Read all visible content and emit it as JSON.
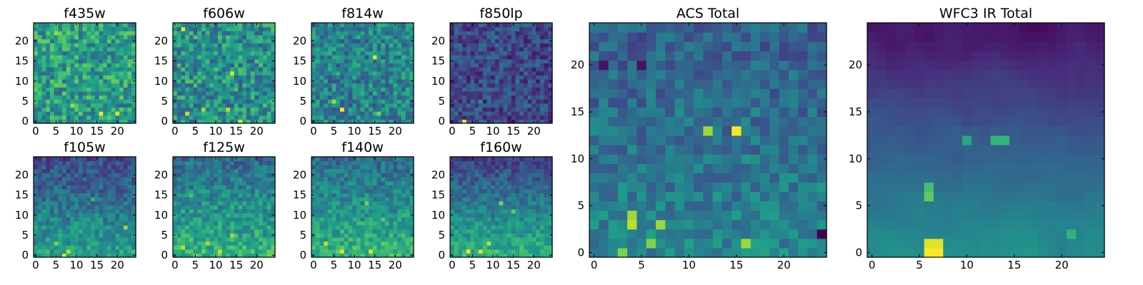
{
  "figure": {
    "colormap": "viridis",
    "colormap_stops": [
      "#440154",
      "#482878",
      "#3e4989",
      "#31688e",
      "#26828e",
      "#1f9e89",
      "#35b779",
      "#6ece58",
      "#b5de2b",
      "#fde725"
    ],
    "frame_color": "#000000",
    "background": "#ffffff"
  },
  "chart_data": [
    {
      "type": "heatmap",
      "title": "f435w",
      "grid_size": 25,
      "xlim": [
        0,
        24
      ],
      "ylim": [
        0,
        24
      ],
      "xticks": [
        0,
        5,
        10,
        15,
        20
      ],
      "yticks": [
        0,
        5,
        10,
        15,
        20
      ],
      "xtick_labels": [
        "0",
        "5",
        "10",
        "15",
        "20"
      ],
      "ytick_labels": [
        "0",
        "5",
        "10",
        "15",
        "20"
      ],
      "base_level": 0.55,
      "noise": 0.22,
      "seed": 11,
      "hotspots": [
        {
          "x": 16,
          "y": 2,
          "level": 1.0
        },
        {
          "x": 20,
          "y": 2,
          "level": 0.95
        },
        {
          "x": 9,
          "y": 4,
          "level": 0.85
        },
        {
          "x": 5,
          "y": 22,
          "level": 0.85
        }
      ]
    },
    {
      "type": "heatmap",
      "title": "f606w",
      "grid_size": 25,
      "xlim": [
        0,
        24
      ],
      "ylim": [
        0,
        24
      ],
      "xticks": [
        0,
        5,
        10,
        15,
        20
      ],
      "yticks": [
        0,
        5,
        10,
        15,
        20
      ],
      "xtick_labels": [
        "0",
        "5",
        "10",
        "15",
        "20"
      ],
      "ytick_labels": [
        "0",
        "5",
        "10",
        "15",
        "20"
      ],
      "base_level": 0.5,
      "noise": 0.22,
      "seed": 22,
      "hotspots": [
        {
          "x": 3,
          "y": 2,
          "level": 0.9
        },
        {
          "x": 7,
          "y": 3,
          "level": 0.85
        },
        {
          "x": 13,
          "y": 3,
          "level": 0.9
        },
        {
          "x": 14,
          "y": 12,
          "level": 0.95
        },
        {
          "x": 2,
          "y": 23,
          "level": 0.95
        },
        {
          "x": 16,
          "y": 0,
          "level": 0.95
        }
      ]
    },
    {
      "type": "heatmap",
      "title": "f814w",
      "grid_size": 25,
      "xlim": [
        0,
        24
      ],
      "ylim": [
        0,
        24
      ],
      "xticks": [
        0,
        5,
        10,
        15,
        20
      ],
      "yticks": [
        0,
        5,
        10,
        15,
        20
      ],
      "xtick_labels": [
        "0",
        "5",
        "10",
        "15",
        "20"
      ],
      "ytick_labels": [
        "0",
        "5",
        "10",
        "15",
        "20"
      ],
      "base_level": 0.45,
      "noise": 0.2,
      "seed": 33,
      "hotspots": [
        {
          "x": 7,
          "y": 3,
          "level": 1.0
        },
        {
          "x": 5,
          "y": 5,
          "level": 0.85
        },
        {
          "x": 15,
          "y": 16,
          "level": 0.95
        },
        {
          "x": 16,
          "y": 2,
          "level": 0.8
        }
      ]
    },
    {
      "type": "heatmap",
      "title": "f850lp",
      "grid_size": 25,
      "xlim": [
        0,
        24
      ],
      "ylim": [
        0,
        24
      ],
      "xticks": [
        0,
        5,
        10,
        15,
        20
      ],
      "yticks": [
        0,
        5,
        10,
        15,
        20
      ],
      "xtick_labels": [
        "0",
        "5",
        "10",
        "15",
        "20"
      ],
      "ytick_labels": [
        "0",
        "5",
        "10",
        "15",
        "20"
      ],
      "base_level": 0.22,
      "noise": 0.16,
      "seed": 44,
      "hotspots": [
        {
          "x": 3,
          "y": 0,
          "level": 0.95
        },
        {
          "x": 7,
          "y": 5,
          "level": 0.5
        },
        {
          "x": 16,
          "y": 10,
          "level": 0.45
        }
      ]
    },
    {
      "type": "heatmap",
      "title": "f105w",
      "grid_size": 25,
      "xlim": [
        0,
        24
      ],
      "ylim": [
        0,
        24
      ],
      "xticks": [
        0,
        5,
        10,
        15,
        20
      ],
      "yticks": [
        0,
        5,
        10,
        15,
        20
      ],
      "xtick_labels": [
        "0",
        "5",
        "10",
        "15",
        "20"
      ],
      "ytick_labels": [
        "0",
        "5",
        "10",
        "15",
        "20"
      ],
      "base_level": 0.4,
      "noise": 0.14,
      "seed": 55,
      "gradient": 0.35,
      "hotspots": [
        {
          "x": 7,
          "y": 0,
          "level": 0.95
        },
        {
          "x": 8,
          "y": 1,
          "level": 0.9
        },
        {
          "x": 22,
          "y": 7,
          "level": 0.85
        },
        {
          "x": 5,
          "y": 3,
          "level": 0.8
        },
        {
          "x": 14,
          "y": 14,
          "level": 0.65
        }
      ]
    },
    {
      "type": "heatmap",
      "title": "f125w",
      "grid_size": 25,
      "xlim": [
        0,
        24
      ],
      "ylim": [
        0,
        24
      ],
      "xticks": [
        0,
        5,
        10,
        15,
        20
      ],
      "yticks": [
        0,
        5,
        10,
        15,
        20
      ],
      "xtick_labels": [
        "0",
        "5",
        "10",
        "15",
        "20"
      ],
      "ytick_labels": [
        "0",
        "5",
        "10",
        "15",
        "20"
      ],
      "base_level": 0.5,
      "noise": 0.15,
      "seed": 66,
      "gradient": 0.3,
      "hotspots": [
        {
          "x": 2,
          "y": 2,
          "level": 0.9
        },
        {
          "x": 11,
          "y": 1,
          "level": 0.9
        },
        {
          "x": 14,
          "y": 5,
          "level": 0.85
        },
        {
          "x": 8,
          "y": 3,
          "level": 0.85
        },
        {
          "x": 4,
          "y": 15,
          "level": 0.7
        }
      ]
    },
    {
      "type": "heatmap",
      "title": "f140w",
      "grid_size": 25,
      "xlim": [
        0,
        24
      ],
      "ylim": [
        0,
        24
      ],
      "xticks": [
        0,
        5,
        10,
        15,
        20
      ],
      "yticks": [
        0,
        5,
        10,
        15,
        20
      ],
      "xtick_labels": [
        "0",
        "5",
        "10",
        "15",
        "20"
      ],
      "ytick_labels": [
        "0",
        "5",
        "10",
        "15",
        "20"
      ],
      "base_level": 0.5,
      "noise": 0.14,
      "seed": 77,
      "gradient": 0.3,
      "hotspots": [
        {
          "x": 3,
          "y": 3,
          "level": 0.9
        },
        {
          "x": 7,
          "y": 1,
          "level": 0.95
        },
        {
          "x": 14,
          "y": 1,
          "level": 0.95
        },
        {
          "x": 13,
          "y": 13,
          "level": 0.8
        },
        {
          "x": 17,
          "y": 9,
          "level": 0.75
        }
      ]
    },
    {
      "type": "heatmap",
      "title": "f160w",
      "grid_size": 25,
      "xlim": [
        0,
        24
      ],
      "ylim": [
        0,
        24
      ],
      "xticks": [
        0,
        5,
        10,
        15,
        20
      ],
      "yticks": [
        0,
        5,
        10,
        15,
        20
      ],
      "xtick_labels": [
        "0",
        "5",
        "10",
        "15",
        "20"
      ],
      "ytick_labels": [
        "0",
        "5",
        "10",
        "15",
        "20"
      ],
      "base_level": 0.42,
      "noise": 0.12,
      "seed": 88,
      "gradient": 0.45,
      "hotspots": [
        {
          "x": 4,
          "y": 1,
          "level": 1.0
        },
        {
          "x": 7,
          "y": 1,
          "level": 0.95
        },
        {
          "x": 9,
          "y": 3,
          "level": 0.9
        },
        {
          "x": 12,
          "y": 13,
          "level": 0.8
        },
        {
          "x": 15,
          "y": 11,
          "level": 0.75
        }
      ]
    },
    {
      "type": "heatmap",
      "title": "ACS Total",
      "grid_size": 25,
      "xlim": [
        0,
        24
      ],
      "ylim": [
        0,
        24
      ],
      "xticks": [
        0,
        5,
        10,
        15,
        20
      ],
      "yticks": [
        0,
        5,
        10,
        15,
        20
      ],
      "xtick_labels": [
        "0",
        "5",
        "10",
        "15",
        "20"
      ],
      "ytick_labels": [
        "0",
        "5",
        "10",
        "15",
        "20"
      ],
      "base_level": 0.38,
      "noise": 0.13,
      "seed": 99,
      "gradient": 0.15,
      "hotspots": [
        {
          "x": 15,
          "y": 13,
          "level": 1.0
        },
        {
          "x": 12,
          "y": 13,
          "level": 0.85
        },
        {
          "x": 4,
          "y": 3,
          "level": 0.9
        },
        {
          "x": 4,
          "y": 4,
          "level": 0.85
        },
        {
          "x": 7,
          "y": 3,
          "level": 0.85
        },
        {
          "x": 16,
          "y": 1,
          "level": 0.85
        },
        {
          "x": 3,
          "y": 0,
          "level": 0.8
        },
        {
          "x": 6,
          "y": 1,
          "level": 0.8
        },
        {
          "x": 24,
          "y": 2,
          "level": 0.0
        },
        {
          "x": 1,
          "y": 20,
          "level": 0.05
        },
        {
          "x": 5,
          "y": 20,
          "level": 0.05
        }
      ]
    },
    {
      "type": "heatmap",
      "title": "WFC3 IR Total",
      "grid_size": 25,
      "xlim": [
        0,
        24
      ],
      "ylim": [
        0,
        24
      ],
      "xticks": [
        0,
        5,
        10,
        15,
        20
      ],
      "yticks": [
        0,
        5,
        10,
        15,
        20
      ],
      "xtick_labels": [
        "0",
        "5",
        "10",
        "15",
        "20"
      ],
      "ytick_labels": [
        "0",
        "5",
        "10",
        "15",
        "20"
      ],
      "base_level": 0.28,
      "noise": 0.07,
      "seed": 111,
      "gradient": 0.45,
      "smooth": true,
      "hotspots": [
        {
          "x": 6,
          "y": 0,
          "level": 1.0
        },
        {
          "x": 7,
          "y": 0,
          "level": 1.0
        },
        {
          "x": 6,
          "y": 1,
          "level": 0.95
        },
        {
          "x": 7,
          "y": 1,
          "level": 0.95
        },
        {
          "x": 14,
          "y": 12,
          "level": 0.65
        },
        {
          "x": 13,
          "y": 12,
          "level": 0.65
        },
        {
          "x": 10,
          "y": 12,
          "level": 0.6
        },
        {
          "x": 21,
          "y": 2,
          "level": 0.65
        },
        {
          "x": 6,
          "y": 6,
          "level": 0.75
        },
        {
          "x": 6,
          "y": 7,
          "level": 0.7
        }
      ]
    }
  ]
}
